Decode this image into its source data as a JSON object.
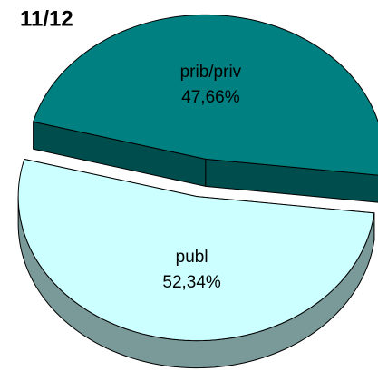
{
  "chart_data": {
    "type": "pie3d",
    "title": "11/12",
    "categories": [
      "prib/priv",
      "publ"
    ],
    "values": [
      47.66,
      52.34
    ],
    "value_labels": [
      "47,66%",
      "52,34%"
    ],
    "colors": [
      "#008080",
      "#ccffff"
    ]
  }
}
